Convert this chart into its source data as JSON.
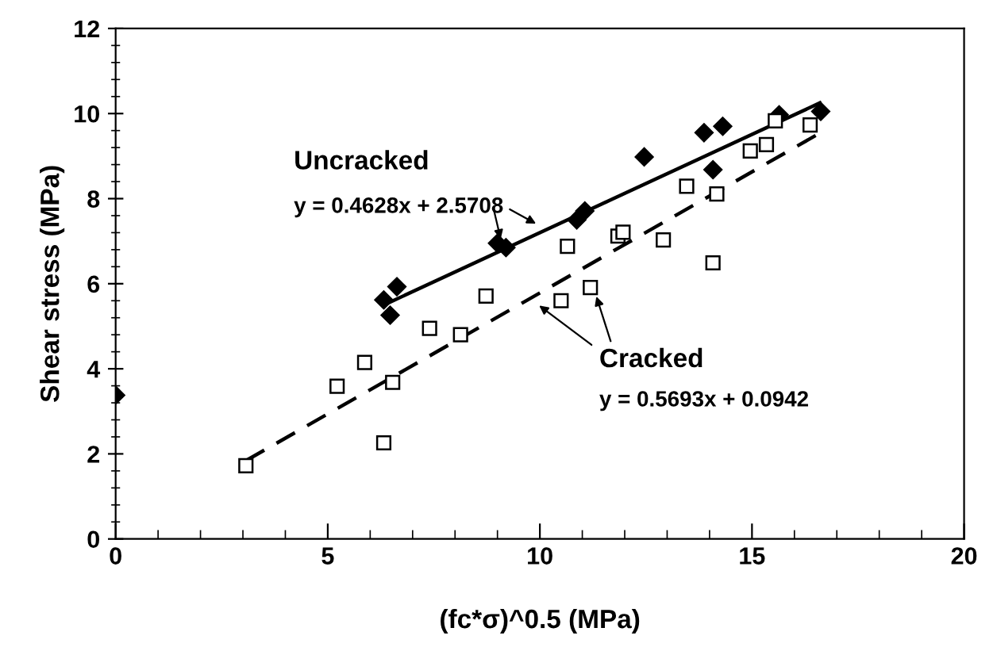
{
  "chart_data": {
    "type": "scatter",
    "xlabel": "(fc*σ)^0.5 (MPa)",
    "ylabel": "Shear stress (MPa)",
    "xlim": [
      0,
      20
    ],
    "xticks": [
      0,
      5,
      10,
      15,
      20
    ],
    "ylim": [
      0,
      12
    ],
    "yticks": [
      0,
      2,
      4,
      6,
      8,
      10,
      12
    ],
    "grid": false,
    "legend": false,
    "series": [
      {
        "marker": "diamond",
        "color": "#000000",
        "x": [
          0,
          6.32,
          6.47,
          6.63,
          9.0,
          9.2,
          10.87,
          11.06,
          12.46,
          13.87,
          14.31,
          14.08,
          15.64,
          16.62
        ],
        "values": [
          3.38,
          5.62,
          5.26,
          5.93,
          6.95,
          6.85,
          7.5,
          7.71,
          8.98,
          9.55,
          9.7,
          8.68,
          9.97,
          10.05
        ]
      },
      {
        "marker": "square",
        "color": "#000000",
        "x": [
          3.07,
          5.22,
          5.87,
          6.32,
          6.53,
          7.4,
          8.13,
          8.73,
          10.5,
          10.65,
          11.19,
          11.84,
          11.96,
          12.91,
          13.46,
          14.08,
          14.17,
          14.96,
          15.34,
          15.55,
          16.37
        ],
        "values": [
          1.72,
          3.59,
          4.15,
          2.26,
          3.68,
          4.95,
          4.8,
          5.71,
          5.6,
          6.88,
          5.91,
          7.12,
          7.21,
          7.03,
          8.29,
          6.49,
          8.11,
          9.12,
          9.27,
          9.83,
          9.73
        ]
      },
      {
        "type": "line",
        "line_style": "solid",
        "color": "#000000",
        "x": [
          6.3,
          16.6
        ],
        "values": [
          5.49,
          10.25
        ]
      },
      {
        "type": "line",
        "line_style": "dashed",
        "color": "#000000",
        "x": [
          3.07,
          16.6
        ],
        "values": [
          1.84,
          9.54
        ]
      }
    ],
    "annotations": [
      "Uncracked",
      {
        "text": "y = 0.4628x + 2.5708",
        "x": 9.1,
        "y": 6.95
      },
      {
        "text": "Cracked",
        "x": 11.3,
        "y": 5.8
      },
      "y = 0.5693x + 0.0942"
    ]
  }
}
